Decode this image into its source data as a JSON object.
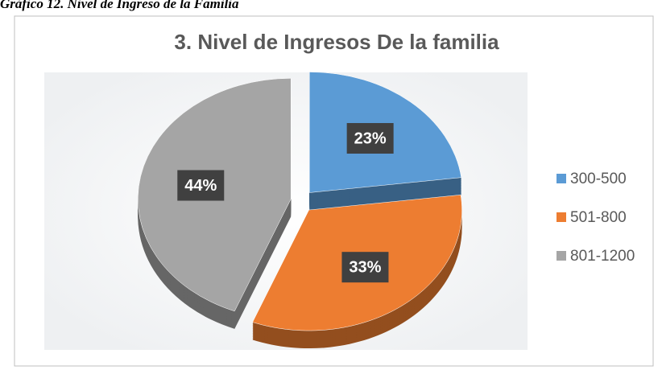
{
  "caption": "Gráfico 12. Nivel de Ingreso de la Familia",
  "chart_data": {
    "type": "pie",
    "title": "3. Nivel de Ingresos De la familia",
    "categories": [
      "300-500",
      "501-800",
      "801-1200"
    ],
    "values": [
      23,
      33,
      44
    ],
    "value_labels": [
      "23%",
      "33%",
      "44%"
    ],
    "colors": [
      "#5b9bd5",
      "#ed7d31",
      "#a5a5a5"
    ],
    "legend": "right"
  }
}
